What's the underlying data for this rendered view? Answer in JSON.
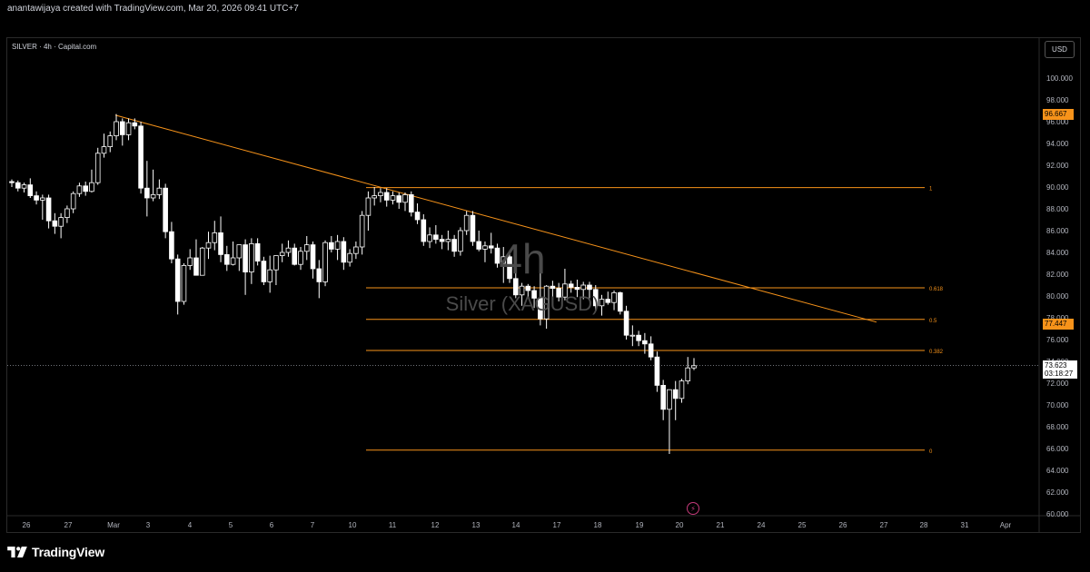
{
  "caption": "anantawijaya created with TradingView.com, Mar 20, 2026 09:41 UTC+7",
  "symbol_label": "SILVER · 4h · Capital.com",
  "currency": "USD",
  "watermark": {
    "timeframe": "4h",
    "symbol": "Silver (XAGUSD)"
  },
  "footer": {
    "brand": "TradingView"
  },
  "colors": {
    "background": "#000000",
    "candle": "#ffffff",
    "fib_line": "#f7931a",
    "trendline": "#f7931a",
    "tag_bg": "#f7931a",
    "price_line": "#9598a1"
  },
  "chart_data": {
    "type": "candlestick",
    "ylim": [
      60,
      101.5
    ],
    "y_ticks": [
      "100.000",
      "98.000",
      "96.000",
      "94.000",
      "92.000",
      "90.000",
      "88.000",
      "86.000",
      "84.000",
      "82.000",
      "80.000",
      "78.000",
      "76.000",
      "74.000",
      "72.000",
      "70.000",
      "68.000",
      "66.000",
      "64.000",
      "62.000",
      "60.000"
    ],
    "x_ticks": [
      "26",
      "27",
      "Mar",
      "3",
      "4",
      "5",
      "6",
      "7",
      "10",
      "11",
      "12",
      "13",
      "14",
      "17",
      "18",
      "19",
      "20",
      "21",
      "24",
      "25",
      "26",
      "27",
      "28",
      "31",
      "Apr"
    ],
    "trendline": {
      "start": {
        "label": "27",
        "price": 96.6
      },
      "end": {
        "label": "27",
        "price": 77.6
      }
    },
    "fib_levels": [
      {
        "label": "1",
        "price": 89.95
      },
      {
        "label": "0.618",
        "price": 80.75
      },
      {
        "label": "0.5",
        "price": 77.85
      },
      {
        "label": "0.382",
        "price": 75.0
      },
      {
        "label": "0",
        "price": 65.85
      }
    ],
    "price_tags": [
      {
        "value": "96.667",
        "price": 96.667
      },
      {
        "value": "77.447",
        "price": 77.447
      }
    ],
    "last_price": {
      "value": "73.623",
      "countdown": "03:18:27",
      "price": 73.623
    },
    "candles": [
      [
        90.5,
        90.7,
        90.0,
        90.4
      ],
      [
        90.4,
        90.6,
        89.6,
        89.9
      ],
      [
        89.9,
        90.4,
        89.5,
        90.2
      ],
      [
        90.2,
        90.8,
        89.0,
        89.2
      ],
      [
        89.2,
        89.6,
        88.4,
        88.8
      ],
      [
        88.8,
        89.3,
        87.0,
        89.0
      ],
      [
        89.0,
        89.3,
        86.2,
        86.9
      ],
      [
        86.9,
        87.6,
        85.7,
        86.4
      ],
      [
        86.4,
        87.6,
        85.3,
        87.2
      ],
      [
        87.2,
        88.3,
        86.7,
        88.0
      ],
      [
        88.0,
        89.6,
        87.6,
        89.4
      ],
      [
        89.4,
        90.4,
        89.1,
        90.1
      ],
      [
        90.1,
        90.5,
        89.2,
        89.6
      ],
      [
        89.6,
        91.6,
        89.5,
        90.4
      ],
      [
        90.4,
        93.6,
        90.2,
        93.1
      ],
      [
        93.1,
        94.9,
        92.7,
        93.7
      ],
      [
        93.7,
        95.1,
        93.2,
        94.7
      ],
      [
        94.7,
        96.7,
        94.3,
        96.0
      ],
      [
        96.0,
        96.3,
        93.8,
        94.8
      ],
      [
        94.8,
        96.3,
        94.3,
        95.9
      ],
      [
        95.9,
        96.3,
        95.3,
        95.6
      ],
      [
        95.6,
        96.0,
        89.4,
        89.9
      ],
      [
        89.9,
        92.4,
        87.3,
        89.0
      ],
      [
        89.0,
        91.6,
        88.7,
        89.3
      ],
      [
        89.3,
        90.7,
        88.9,
        89.9
      ],
      [
        89.9,
        90.3,
        85.3,
        85.9
      ],
      [
        85.9,
        86.8,
        83.0,
        83.4
      ],
      [
        83.4,
        83.8,
        78.3,
        79.5
      ],
      [
        79.5,
        83.0,
        79.2,
        82.8
      ],
      [
        82.8,
        84.3,
        82.4,
        83.5
      ],
      [
        83.5,
        85.2,
        81.9,
        81.9
      ],
      [
        81.9,
        84.5,
        81.9,
        84.4
      ],
      [
        84.4,
        85.9,
        83.4,
        84.9
      ],
      [
        84.9,
        86.9,
        84.2,
        85.8
      ],
      [
        85.8,
        87.3,
        83.1,
        83.8
      ],
      [
        83.8,
        84.6,
        82.3,
        82.9
      ],
      [
        82.9,
        85.0,
        82.8,
        83.5
      ],
      [
        83.5,
        84.6,
        82.3,
        84.7
      ],
      [
        84.7,
        85.2,
        80.1,
        82.2
      ],
      [
        82.2,
        85.3,
        81.1,
        84.8
      ],
      [
        84.8,
        85.3,
        82.8,
        83.2
      ],
      [
        83.2,
        83.6,
        81.0,
        81.3
      ],
      [
        81.3,
        83.7,
        80.3,
        82.4
      ],
      [
        82.4,
        83.6,
        81.0,
        83.7
      ],
      [
        83.7,
        84.8,
        83.1,
        84.0
      ],
      [
        84.0,
        85.1,
        83.6,
        84.4
      ],
      [
        84.4,
        84.8,
        82.8,
        82.9
      ],
      [
        82.9,
        84.5,
        82.4,
        84.1
      ],
      [
        84.1,
        85.5,
        83.3,
        84.7
      ],
      [
        84.7,
        85.0,
        81.6,
        82.5
      ],
      [
        82.5,
        83.3,
        79.8,
        81.3
      ],
      [
        81.3,
        85.1,
        80.9,
        84.9
      ],
      [
        84.9,
        85.5,
        84.0,
        84.3
      ],
      [
        84.3,
        85.6,
        83.3,
        85.0
      ],
      [
        85.0,
        85.4,
        82.4,
        83.1
      ],
      [
        83.1,
        84.3,
        82.7,
        83.9
      ],
      [
        83.9,
        85.0,
        83.4,
        84.5
      ],
      [
        84.5,
        87.8,
        83.8,
        87.4
      ],
      [
        87.4,
        89.6,
        86.0,
        89.0
      ],
      [
        89.0,
        90.0,
        88.3,
        89.2
      ],
      [
        89.2,
        89.9,
        88.6,
        89.5
      ],
      [
        89.5,
        89.9,
        88.2,
        88.8
      ],
      [
        88.8,
        89.6,
        88.4,
        89.2
      ],
      [
        89.2,
        89.5,
        88.0,
        88.6
      ],
      [
        88.6,
        89.5,
        87.8,
        89.3
      ],
      [
        89.3,
        89.6,
        87.3,
        87.7
      ],
      [
        87.7,
        88.5,
        86.6,
        87.0
      ],
      [
        87.0,
        87.5,
        84.6,
        85.0
      ],
      [
        85.0,
        86.3,
        84.4,
        85.6
      ],
      [
        85.6,
        86.5,
        84.8,
        85.2
      ],
      [
        85.2,
        85.6,
        84.3,
        85.0
      ],
      [
        85.0,
        86.0,
        84.2,
        85.2
      ],
      [
        85.2,
        85.6,
        83.6,
        84.1
      ],
      [
        84.1,
        86.3,
        83.7,
        86.0
      ],
      [
        86.0,
        87.8,
        85.6,
        87.4
      ],
      [
        87.4,
        87.8,
        84.6,
        85.0
      ],
      [
        85.0,
        86.0,
        84.1,
        84.3
      ],
      [
        84.3,
        85.0,
        83.1,
        84.6
      ],
      [
        84.6,
        85.8,
        83.9,
        84.4
      ],
      [
        84.4,
        84.8,
        82.6,
        83.0
      ],
      [
        83.0,
        84.5,
        81.2,
        83.6
      ],
      [
        83.6,
        84.2,
        81.2,
        81.6
      ],
      [
        81.6,
        82.5,
        79.8,
        80.1
      ],
      [
        80.1,
        81.2,
        79.1,
        80.9
      ],
      [
        80.9,
        81.1,
        79.9,
        80.5
      ],
      [
        80.5,
        80.9,
        78.9,
        79.8
      ],
      [
        79.8,
        82.1,
        77.3,
        77.9
      ],
      [
        77.9,
        81.0,
        77.0,
        80.9
      ],
      [
        80.9,
        81.4,
        79.8,
        80.7
      ],
      [
        80.7,
        81.2,
        79.5,
        79.9
      ],
      [
        79.9,
        82.5,
        79.6,
        81.1
      ],
      [
        81.1,
        81.4,
        80.3,
        80.8
      ],
      [
        80.8,
        81.5,
        79.9,
        80.6
      ],
      [
        80.6,
        81.3,
        79.7,
        81.0
      ],
      [
        81.0,
        81.3,
        79.8,
        80.6
      ],
      [
        80.6,
        81.0,
        78.6,
        79.1
      ],
      [
        79.1,
        80.1,
        78.2,
        79.7
      ],
      [
        79.7,
        80.4,
        79.2,
        79.4
      ],
      [
        79.4,
        80.5,
        78.7,
        80.3
      ],
      [
        80.3,
        80.4,
        78.3,
        78.6
      ],
      [
        78.6,
        79.1,
        76.0,
        76.4
      ],
      [
        76.4,
        77.3,
        75.4,
        76.4
      ],
      [
        76.4,
        76.8,
        75.4,
        75.9
      ],
      [
        75.9,
        76.6,
        74.7,
        75.6
      ],
      [
        75.6,
        76.3,
        74.1,
        74.4
      ],
      [
        74.4,
        74.9,
        71.2,
        71.8
      ],
      [
        71.8,
        72.3,
        68.6,
        69.6
      ],
      [
        69.6,
        71.4,
        65.5,
        71.4
      ],
      [
        71.4,
        72.2,
        68.6,
        70.6
      ],
      [
        70.6,
        72.4,
        70.2,
        72.2
      ],
      [
        72.2,
        74.4,
        71.9,
        73.4
      ],
      [
        73.4,
        74.3,
        73.2,
        73.6
      ]
    ]
  }
}
